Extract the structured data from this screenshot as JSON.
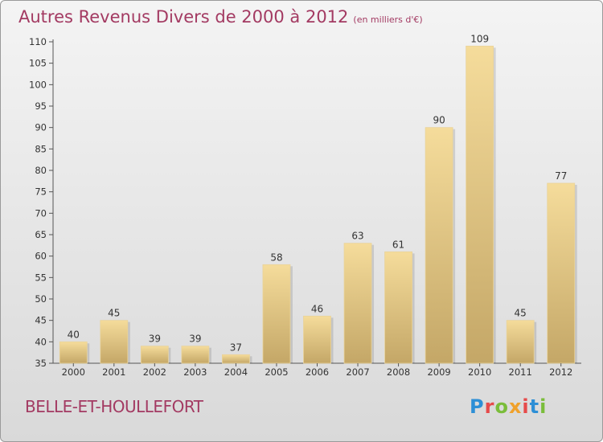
{
  "header": {
    "title": "Autres Revenus Divers de 2000 à 2012",
    "unit": "(en milliers d'€)"
  },
  "footer": {
    "commune": "BELLE-ET-HOULLEFORT",
    "logo_text": "Proxiti"
  },
  "colors": {
    "title": "#a33a62",
    "bar_light": "#f5dc9b",
    "bar_dark": "#c4a767",
    "logo_letters": [
      "#2d8fd6",
      "#e64a4a",
      "#7abd3a",
      "#f0a12b",
      "#e64a4a",
      "#2d8fd6",
      "#7abd3a"
    ]
  },
  "chart_data": {
    "type": "bar",
    "title": "Autres Revenus Divers de 2000 à 2012",
    "subtitle": "(en milliers d'€)",
    "categories": [
      "2000",
      "2001",
      "2002",
      "2003",
      "2004",
      "2005",
      "2006",
      "2007",
      "2008",
      "2009",
      "2010",
      "2011",
      "2012"
    ],
    "values": [
      40,
      45,
      39,
      39,
      37,
      58,
      46,
      63,
      61,
      90,
      109,
      45,
      77
    ],
    "ylim": [
      35,
      110
    ],
    "yticks": [
      35,
      40,
      45,
      50,
      55,
      60,
      65,
      70,
      75,
      80,
      85,
      90,
      95,
      100,
      105,
      110
    ],
    "grid": false,
    "legend": "none"
  }
}
